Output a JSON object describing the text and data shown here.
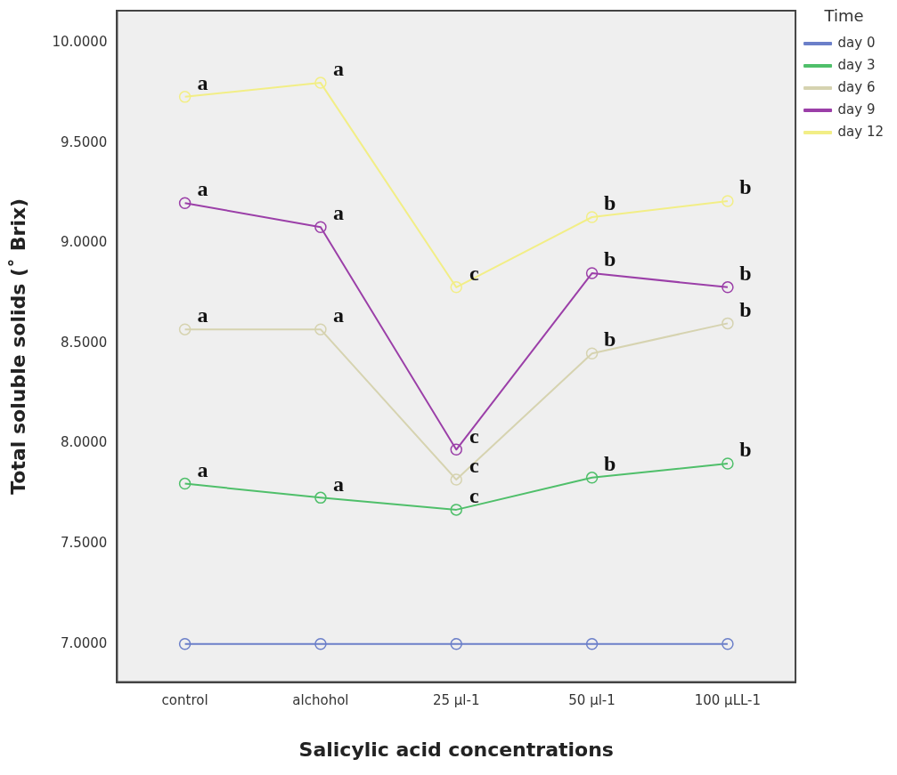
{
  "chart_data": {
    "type": "line",
    "xlabel": "Salicylic acid concentrations",
    "ylabel": "Total soluble solids (˚ Brix)",
    "legend_title": "Time",
    "legend": "top right",
    "grid": false,
    "marker": "circle",
    "line_style": "solid",
    "categories": [
      "control",
      "alchohol",
      "25 µl-1",
      "50 µl-1",
      "100 µLL-1"
    ],
    "ylim": [
      6.81,
      10.16
    ],
    "yticks": [
      {
        "value": 7,
        "label": "7.0000"
      },
      {
        "value": 7.5,
        "label": "7.5000"
      },
      {
        "value": 8,
        "label": "8.0000"
      },
      {
        "value": 8.5,
        "label": "8.5000"
      },
      {
        "value": 9,
        "label": "9.0000"
      },
      {
        "value": 9.5,
        "label": "9.5000"
      },
      {
        "value": 10,
        "label": "10.0000"
      }
    ],
    "series": [
      {
        "name": "day 0",
        "color": "#6b7fc9",
        "values": [
          7.0,
          7.0,
          7.0,
          7.0,
          7.0
        ]
      },
      {
        "name": "day 3",
        "color": "#4fbf6a",
        "values": [
          7.8,
          7.73,
          7.67,
          7.83,
          7.9
        ]
      },
      {
        "name": "day 6",
        "color": "#d6d3b0",
        "values": [
          8.57,
          8.57,
          7.82,
          8.45,
          8.6
        ]
      },
      {
        "name": "day 9",
        "color": "#9b3fa8",
        "values": [
          9.2,
          9.08,
          7.97,
          8.85,
          8.78
        ]
      },
      {
        "name": "day 12",
        "color": "#f2ee86",
        "values": [
          9.73,
          9.8,
          8.78,
          9.13,
          9.21
        ]
      }
    ],
    "annotations": [
      {
        "text": "a",
        "x": "control",
        "y": 9.73
      },
      {
        "text": "a",
        "x": "alchohol",
        "y": 9.8
      },
      {
        "text": "c",
        "x": "25 µl-1",
        "y": 8.78
      },
      {
        "text": "b",
        "x": "50 µl-1",
        "y": 9.13
      },
      {
        "text": "b",
        "x": "100 µLL-1",
        "y": 9.21
      },
      {
        "text": "a",
        "x": "control",
        "y": 9.2
      },
      {
        "text": "a",
        "x": "alchohol",
        "y": 9.08
      },
      {
        "text": "c",
        "x": "25 µl-1",
        "y": 7.97
      },
      {
        "text": "b",
        "x": "50 µl-1",
        "y": 8.85
      },
      {
        "text": "b",
        "x": "100 µLL-1",
        "y": 8.78
      },
      {
        "text": "a",
        "x": "control",
        "y": 8.57
      },
      {
        "text": "a",
        "x": "alchohol",
        "y": 8.57
      },
      {
        "text": "c",
        "x": "25 µl-1",
        "y": 7.82
      },
      {
        "text": "b",
        "x": "50 µl-1",
        "y": 8.45
      },
      {
        "text": "b",
        "x": "100 µLL-1",
        "y": 8.6
      },
      {
        "text": "a",
        "x": "control",
        "y": 7.8
      },
      {
        "text": "a",
        "x": "alchohol",
        "y": 7.73
      },
      {
        "text": "c",
        "x": "25 µl-1",
        "y": 7.67
      },
      {
        "text": "b",
        "x": "50 µl-1",
        "y": 7.83
      },
      {
        "text": "b",
        "x": "100 µLL-1",
        "y": 7.9
      }
    ]
  }
}
